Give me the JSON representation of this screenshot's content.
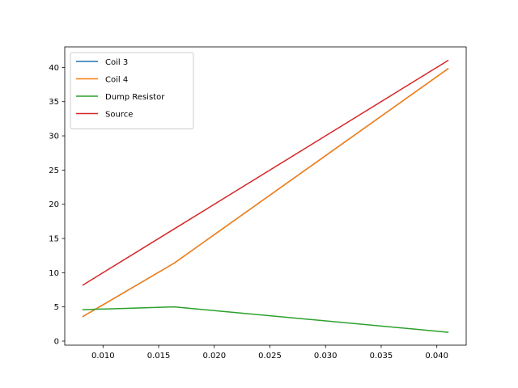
{
  "chart_data": {
    "type": "line",
    "title": "",
    "xlabel": "",
    "ylabel": "",
    "x": [
      0.0082,
      0.0164,
      0.041
    ],
    "series": [
      {
        "name": "Coil 3",
        "color": "#1f77b4",
        "values": [
          3.6,
          11.4,
          39.8
        ]
      },
      {
        "name": "Coil 4",
        "color": "#ff7f0e",
        "values": [
          3.6,
          11.4,
          39.8
        ]
      },
      {
        "name": "Dump Resistor",
        "color": "#2ca02c",
        "values": [
          4.6,
          5.0,
          1.3
        ]
      },
      {
        "name": "Source",
        "color": "#d62728",
        "values": [
          8.2,
          16.4,
          41.0
        ]
      }
    ],
    "xlim": [
      0.00656,
      0.04264
    ],
    "ylim": [
      -0.59,
      43.0
    ],
    "xticks": [
      0.01,
      0.015,
      0.02,
      0.025,
      0.03,
      0.035,
      0.04
    ],
    "xtick_labels": [
      "0.010",
      "0.015",
      "0.020",
      "0.025",
      "0.030",
      "0.035",
      "0.040"
    ],
    "yticks": [
      0,
      5,
      10,
      15,
      20,
      25,
      30,
      35,
      40
    ],
    "ytick_labels": [
      "0",
      "5",
      "10",
      "15",
      "20",
      "25",
      "30",
      "35",
      "40"
    ],
    "grid": false,
    "legend_position": "top-left"
  }
}
